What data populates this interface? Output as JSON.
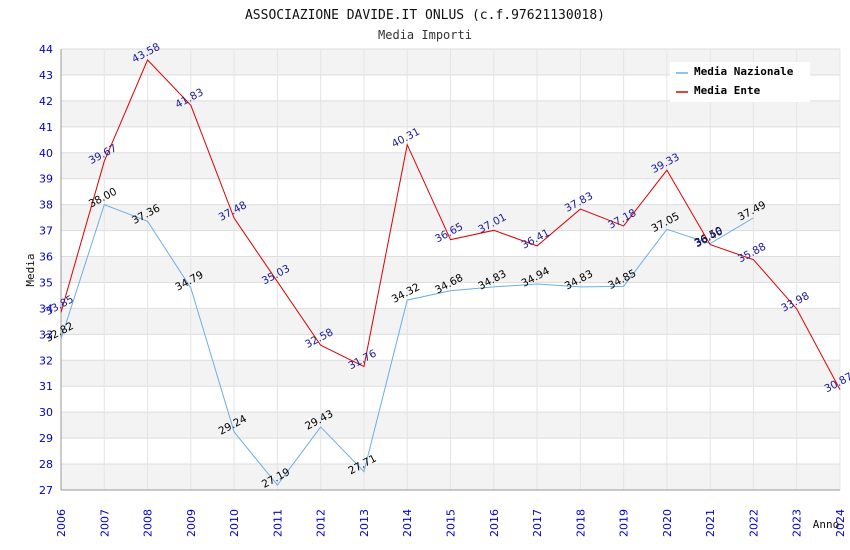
{
  "chart_data": {
    "type": "line",
    "title": "ASSOCIAZIONE DAVIDE.IT ONLUS (c.f.97621130018)",
    "subtitle": "Media Importi",
    "ylabel": "Media",
    "xlabel": "Anno",
    "ylim": [
      27,
      44
    ],
    "grid": true,
    "legend_position": "top-right",
    "x": [
      "2006",
      "2007",
      "2008",
      "2009",
      "2010",
      "2011",
      "2012",
      "2013",
      "2014",
      "2015",
      "2016",
      "2017",
      "2018",
      "2019",
      "2020",
      "2021",
      "2022",
      "2023",
      "2024"
    ],
    "yticks": [
      "27",
      "28",
      "29",
      "30",
      "31",
      "32",
      "33",
      "34",
      "35",
      "36",
      "37",
      "38",
      "39",
      "40",
      "41",
      "42",
      "43",
      "44"
    ],
    "series": [
      {
        "name": "Media Nazionale",
        "color": "#6aaee8",
        "values": [
          32.82,
          38.0,
          37.36,
          34.79,
          29.24,
          27.19,
          29.43,
          27.71,
          34.32,
          34.68,
          34.83,
          34.94,
          34.83,
          34.85,
          37.05,
          36.5,
          37.49,
          null,
          null
        ],
        "labels": [
          "32.82",
          "38.00",
          "37.36",
          "34.79",
          "29.24",
          "27.19",
          "29.43",
          "27.71",
          "34.32",
          "34.68",
          "34.83",
          "34.94",
          "34.83",
          "34.85",
          "37.05",
          "36.50",
          "37.49",
          "",
          ""
        ]
      },
      {
        "name": "Media Ente",
        "color": "#dd0000",
        "values": [
          33.85,
          39.67,
          43.58,
          41.83,
          37.48,
          35.03,
          32.58,
          31.76,
          40.31,
          36.65,
          37.01,
          36.41,
          37.83,
          37.18,
          39.33,
          36.46,
          35.88,
          33.98,
          30.87
        ],
        "labels": [
          "33.85",
          "39.67",
          "43.58",
          "41.83",
          "37.48",
          "35.03",
          "32.58",
          "31.76",
          "40.31",
          "36.65",
          "37.01",
          "36.41",
          "37.83",
          "37.18",
          "39.33",
          "36.46",
          "35.88",
          "33.98",
          "30.87"
        ]
      }
    ]
  }
}
